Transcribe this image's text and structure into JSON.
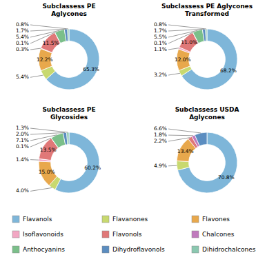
{
  "chart_data": [
    {
      "type": "donut",
      "title": "Subclassess PE\nAglycones",
      "categories": [
        "Flavanols",
        "Flavanones",
        "Flavones",
        "Isoflavonoids",
        "Flavonols",
        "Chalcones",
        "Anthocyanins",
        "Dihydroflavonols",
        "Dihidrochalcones"
      ],
      "values": [
        65.3,
        5.4,
        12.2,
        0.3,
        11.5,
        0.1,
        5.4,
        1.7,
        0.8
      ],
      "value_labels": [
        "65.3%",
        "5.4%",
        "12.2%",
        "0.3%",
        "11.5%",
        "0.1%",
        "5.4%",
        "1.7%",
        "0.8%"
      ],
      "colors": [
        "#7EB6D9",
        "#C8D96F",
        "#E8A84C",
        "#F2A7C3",
        "#E07878",
        "#C07ABD",
        "#7BBF8A",
        "#5B8DC0",
        "#8BC8B0"
      ],
      "data_labels": true
    },
    {
      "type": "donut",
      "title": "Subclassess PE Aglycones\nTransformed",
      "categories": [
        "Flavanols",
        "Flavanones",
        "Flavones",
        "Isoflavonoids",
        "Flavonols",
        "Chalcones",
        "Anthocyanins",
        "Dihydroflavonols",
        "Dihidrochalcones"
      ],
      "values": [
        68.2,
        3.2,
        12.0,
        1.1,
        11.0,
        0.1,
        5.5,
        1.7,
        0.8
      ],
      "value_labels": [
        "68.2%",
        "3.2%",
        "12.0%",
        "1.1%",
        "11.0%",
        "0.1%",
        "5.5%",
        "1.7%",
        "0.8%"
      ],
      "colors": [
        "#7EB6D9",
        "#C8D96F",
        "#E8A84C",
        "#F2A7C3",
        "#E07878",
        "#C07ABD",
        "#7BBF8A",
        "#5B8DC0",
        "#8BC8B0"
      ],
      "data_labels": true
    },
    {
      "type": "donut",
      "title": "Subclassess PE\nGlycosides",
      "categories": [
        "Flavanols",
        "Flavanones",
        "Flavones",
        "Isoflavonoids",
        "Flavonols",
        "Chalcones",
        "Anthocyanins",
        "Dihydroflavonols",
        "Dihidrochalcones"
      ],
      "values": [
        60.2,
        4.0,
        15.0,
        1.4,
        13.5,
        0.1,
        7.1,
        2.0,
        1.3
      ],
      "value_labels": [
        "60.2%",
        "4.0%",
        "15.0%",
        "1.4%",
        "13.5%",
        "0.1%",
        "7.1%",
        "2.0%",
        "1.3%"
      ],
      "colors": [
        "#7EB6D9",
        "#C8D96F",
        "#E8A84C",
        "#F2A7C3",
        "#E07878",
        "#C07ABD",
        "#7BBF8A",
        "#5B8DC0",
        "#8BC8B0"
      ],
      "data_labels": true
    },
    {
      "type": "donut",
      "title": "Subclassess USDA\nAglycones",
      "categories": [
        "Flavanols",
        "Flavanones",
        "Flavones",
        "Flavonols",
        "Chalcones",
        "Dihydroflavonols"
      ],
      "values": [
        70.8,
        4.9,
        13.4,
        2.2,
        1.8,
        6.6
      ],
      "value_labels": [
        "70.8%",
        "4.9%",
        "13.4%",
        "2.2%",
        "1.8%",
        "6.6%"
      ],
      "colors": [
        "#7EB6D9",
        "#C8D96F",
        "#E8A84C",
        "#E07878",
        "#C07ABD",
        "#5B8DC0"
      ],
      "data_labels": true
    }
  ]
}
